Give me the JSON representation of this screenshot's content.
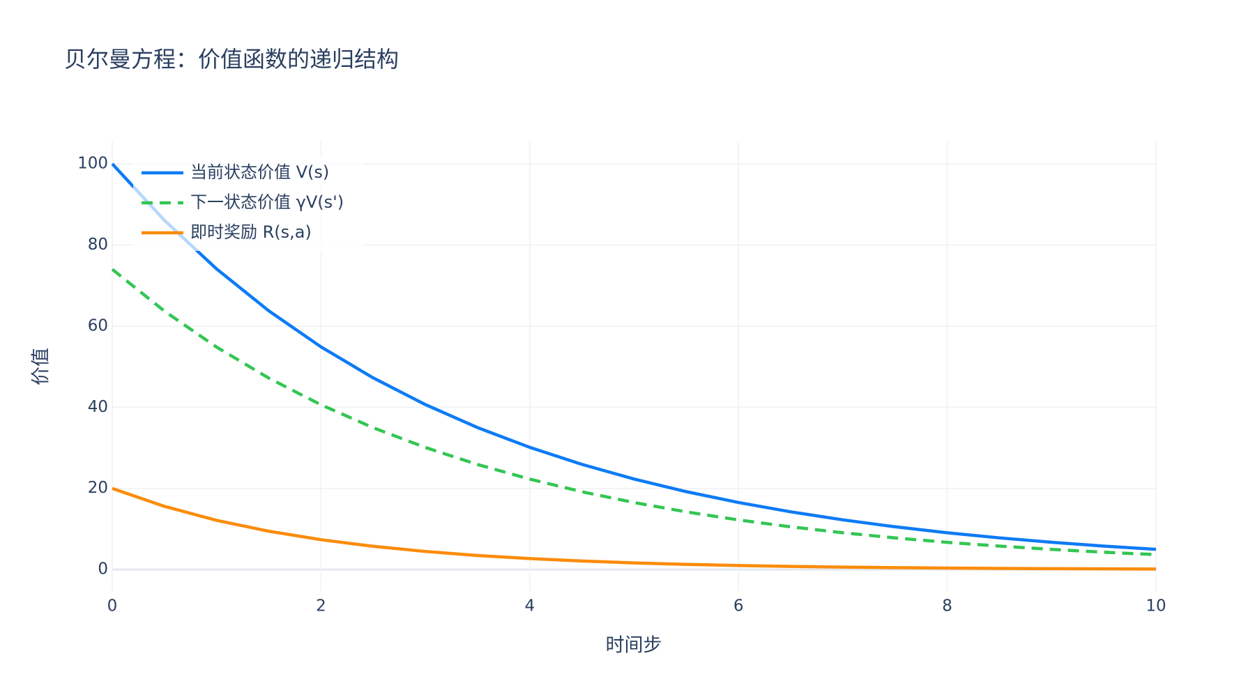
{
  "chart_data": {
    "type": "line",
    "title": "贝尔曼方程：价值函数的递归结构",
    "x_label": "时间步",
    "y_label": "价值",
    "x": [
      0,
      0.5,
      1,
      1.5,
      2,
      2.5,
      3,
      3.5,
      4,
      4.5,
      5,
      5.5,
      6,
      6.5,
      7,
      7.5,
      8,
      8.5,
      9,
      9.5,
      10
    ],
    "series": [
      {
        "name": "当前状态价值 V(s)",
        "color": "#0d7bf5",
        "dash": "solid",
        "values": [
          100,
          86.07,
          74.08,
          63.76,
          54.88,
          47.24,
          40.66,
          34.99,
          30.12,
          25.92,
          22.31,
          19.2,
          16.53,
          14.23,
          12.25,
          10.54,
          9.07,
          7.81,
          6.72,
          5.78,
          4.98
        ]
      },
      {
        "name": "下一状态价值 γV(s')",
        "color": "#33c653",
        "dash": "dash",
        "values": [
          74,
          63.69,
          54.82,
          47.18,
          40.61,
          34.96,
          30.09,
          25.89,
          22.29,
          19.18,
          16.51,
          14.21,
          12.23,
          10.53,
          9.07,
          7.8,
          6.71,
          5.78,
          4.97,
          4.28,
          3.68
        ]
      },
      {
        "name": "即时奖励 R(s,a)",
        "color": "#fb8c0b",
        "dash": "solid",
        "values": [
          20,
          15.58,
          12.13,
          9.45,
          7.36,
          5.73,
          4.46,
          3.47,
          2.71,
          2.11,
          1.64,
          1.28,
          1,
          0.78,
          0.61,
          0.47,
          0.37,
          0.29,
          0.22,
          0.18,
          0.13
        ]
      }
    ],
    "xlim": [
      0,
      10
    ],
    "xticks": [
      0,
      2,
      4,
      6,
      8,
      10
    ],
    "ylim": [
      -5.3,
      105.5
    ],
    "yticks": [
      0,
      20,
      40,
      60,
      80,
      100
    ],
    "grid": true,
    "legend": "top-left"
  }
}
